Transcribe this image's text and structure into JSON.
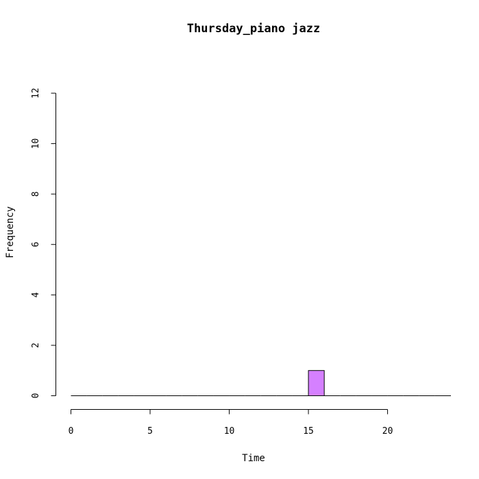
{
  "chart_data": {
    "type": "histogram",
    "title": "Thursday_piano jazz",
    "xlabel": "Time",
    "ylabel": "Frequency",
    "xlim": [
      0,
      24
    ],
    "ylim": [
      0,
      12
    ],
    "x_ticks": [
      0,
      5,
      10,
      15,
      20
    ],
    "y_ticks": [
      0,
      2,
      4,
      6,
      8,
      10,
      12
    ],
    "bin_width": 1,
    "bins": [
      {
        "start": 0,
        "end": 1,
        "count": 0
      },
      {
        "start": 1,
        "end": 2,
        "count": 0
      },
      {
        "start": 2,
        "end": 3,
        "count": 0
      },
      {
        "start": 3,
        "end": 4,
        "count": 0
      },
      {
        "start": 4,
        "end": 5,
        "count": 0
      },
      {
        "start": 5,
        "end": 6,
        "count": 0
      },
      {
        "start": 6,
        "end": 7,
        "count": 0
      },
      {
        "start": 7,
        "end": 8,
        "count": 0
      },
      {
        "start": 8,
        "end": 9,
        "count": 0
      },
      {
        "start": 9,
        "end": 10,
        "count": 0
      },
      {
        "start": 10,
        "end": 11,
        "count": 0
      },
      {
        "start": 11,
        "end": 12,
        "count": 0
      },
      {
        "start": 12,
        "end": 13,
        "count": 0
      },
      {
        "start": 13,
        "end": 14,
        "count": 0
      },
      {
        "start": 14,
        "end": 15,
        "count": 0
      },
      {
        "start": 15,
        "end": 16,
        "count": 1
      },
      {
        "start": 16,
        "end": 17,
        "count": 0
      },
      {
        "start": 17,
        "end": 18,
        "count": 0
      },
      {
        "start": 18,
        "end": 19,
        "count": 0
      },
      {
        "start": 19,
        "end": 20,
        "count": 0
      },
      {
        "start": 20,
        "end": 21,
        "count": 0
      },
      {
        "start": 21,
        "end": 22,
        "count": 0
      },
      {
        "start": 22,
        "end": 23,
        "count": 0
      },
      {
        "start": 23,
        "end": 24,
        "count": 0
      }
    ],
    "bar_color": "#d580ff",
    "grid": false,
    "legend": "none"
  }
}
